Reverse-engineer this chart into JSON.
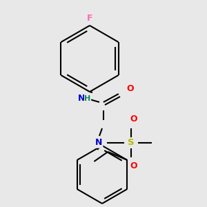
{
  "bg_color": "#e8e8e8",
  "atom_colors": {
    "F": "#ff69b4",
    "N": "#0000cc",
    "O": "#ff0000",
    "S": "#b8b800",
    "C": "#000000",
    "H": "#008b57"
  },
  "bond_color": "#000000",
  "line_width": 1.5,
  "fig_size": [
    3.0,
    3.0
  ],
  "dpi": 100
}
